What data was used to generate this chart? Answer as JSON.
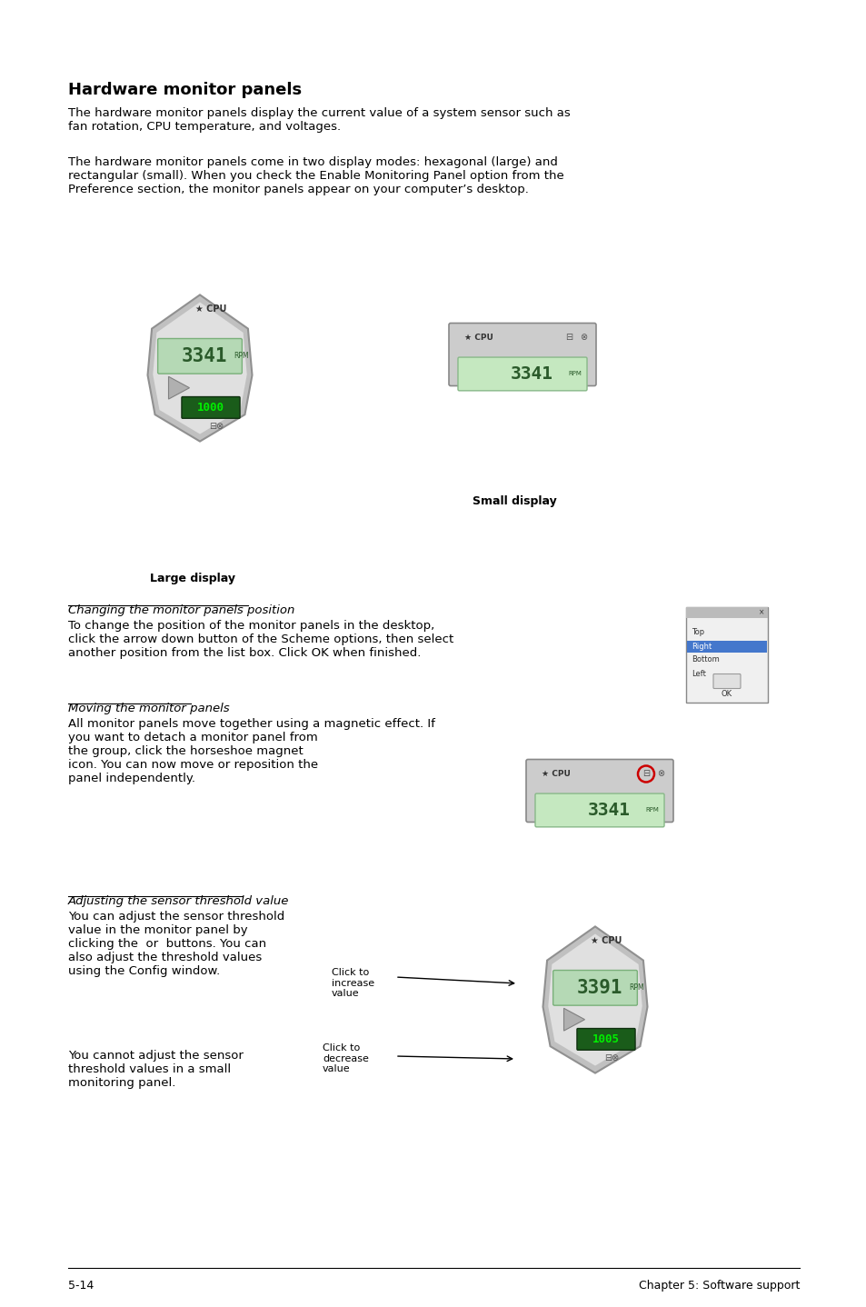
{
  "bg_color": "#ffffff",
  "title": "Hardware monitor panels",
  "footer_left": "5-14",
  "footer_right": "Chapter 5: Software support",
  "para1": "The hardware monitor panels display the current value of a system sensor such as\nfan rotation, CPU temperature, and voltages.",
  "para2": "The hardware monitor panels come in two display modes: hexagonal (large) and\nrectangular (small). When you check the Enable Monitoring Panel option from the\nPreference section, the monitor panels appear on your computer’s desktop.",
  "label_large": "Large display",
  "label_small": "Small display",
  "section1_title": "Changing the monitor panels position",
  "section1_body": "To change the position of the monitor panels in the desktop,\nclick the arrow down button of the Scheme options, then select\nanother position from the list box. Click OK when finished.",
  "section2_title": "Moving the monitor panels",
  "section2_body": "All monitor panels move together using a magnetic effect. If\nyou want to detach a monitor panel from\nthe group, click the horseshoe magnet\nicon. You can now move or reposition the\npanel independently.",
  "section3_title": "Adjusting the sensor threshold value ",
  "section3_body1": "You can adjust the sensor threshold\nvalue in the monitor panel by\nclicking the  or  buttons. You can\nalso adjust the threshold values\nusing the Config window.",
  "section3_body2": "You cannot adjust the sensor\nthreshold values in a small\nmonitoring panel.",
  "anno1": "Click to\nincrease\nvalue",
  "anno2": "Click to\ndecrease\nvalue"
}
